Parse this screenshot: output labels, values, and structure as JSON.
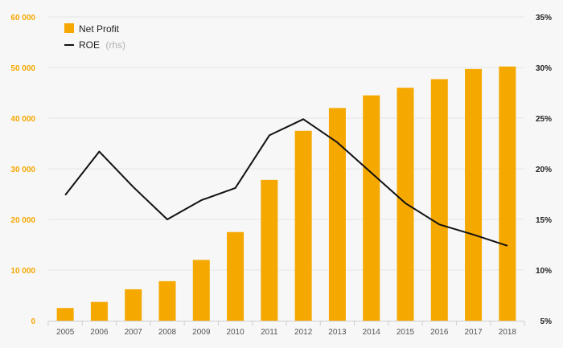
{
  "chart_data": {
    "type": "bar",
    "categories": [
      "2005",
      "2006",
      "2007",
      "2008",
      "2009",
      "2010",
      "2011",
      "2012",
      "2013",
      "2014",
      "2015",
      "2016",
      "2017",
      "2018"
    ],
    "series": [
      {
        "name": "Net Profit",
        "type": "bar",
        "axis": "left",
        "color": "#f5a800",
        "values": [
          2500,
          3700,
          6200,
          7800,
          12000,
          17500,
          27800,
          37500,
          42000,
          44500,
          46000,
          47700,
          49700,
          50200
        ]
      },
      {
        "name": "ROE",
        "name_suffix": "(rhs)",
        "type": "line",
        "axis": "right",
        "color": "#111111",
        "values": [
          17.4,
          21.7,
          18.2,
          15.0,
          16.9,
          18.1,
          23.3,
          24.9,
          22.6,
          19.6,
          16.6,
          14.5,
          13.5,
          12.4
        ]
      }
    ],
    "left_axis": {
      "ylim": [
        0,
        60000
      ],
      "ticks": [
        0,
        10000,
        20000,
        30000,
        40000,
        50000,
        60000
      ],
      "tick_labels": [
        "0",
        "10 000",
        "20 000",
        "30 000",
        "40 000",
        "50 000",
        "60 000"
      ],
      "color": "#f5a800"
    },
    "right_axis": {
      "ylim": [
        5,
        35
      ],
      "ticks": [
        5,
        10,
        15,
        20,
        25,
        30,
        35
      ],
      "tick_labels": [
        "5%",
        "10%",
        "15%",
        "20%",
        "25%",
        "30%",
        "35%"
      ]
    },
    "grid": true,
    "legend_position": "top-left",
    "title": "",
    "xlabel": "",
    "ylabel": ""
  }
}
